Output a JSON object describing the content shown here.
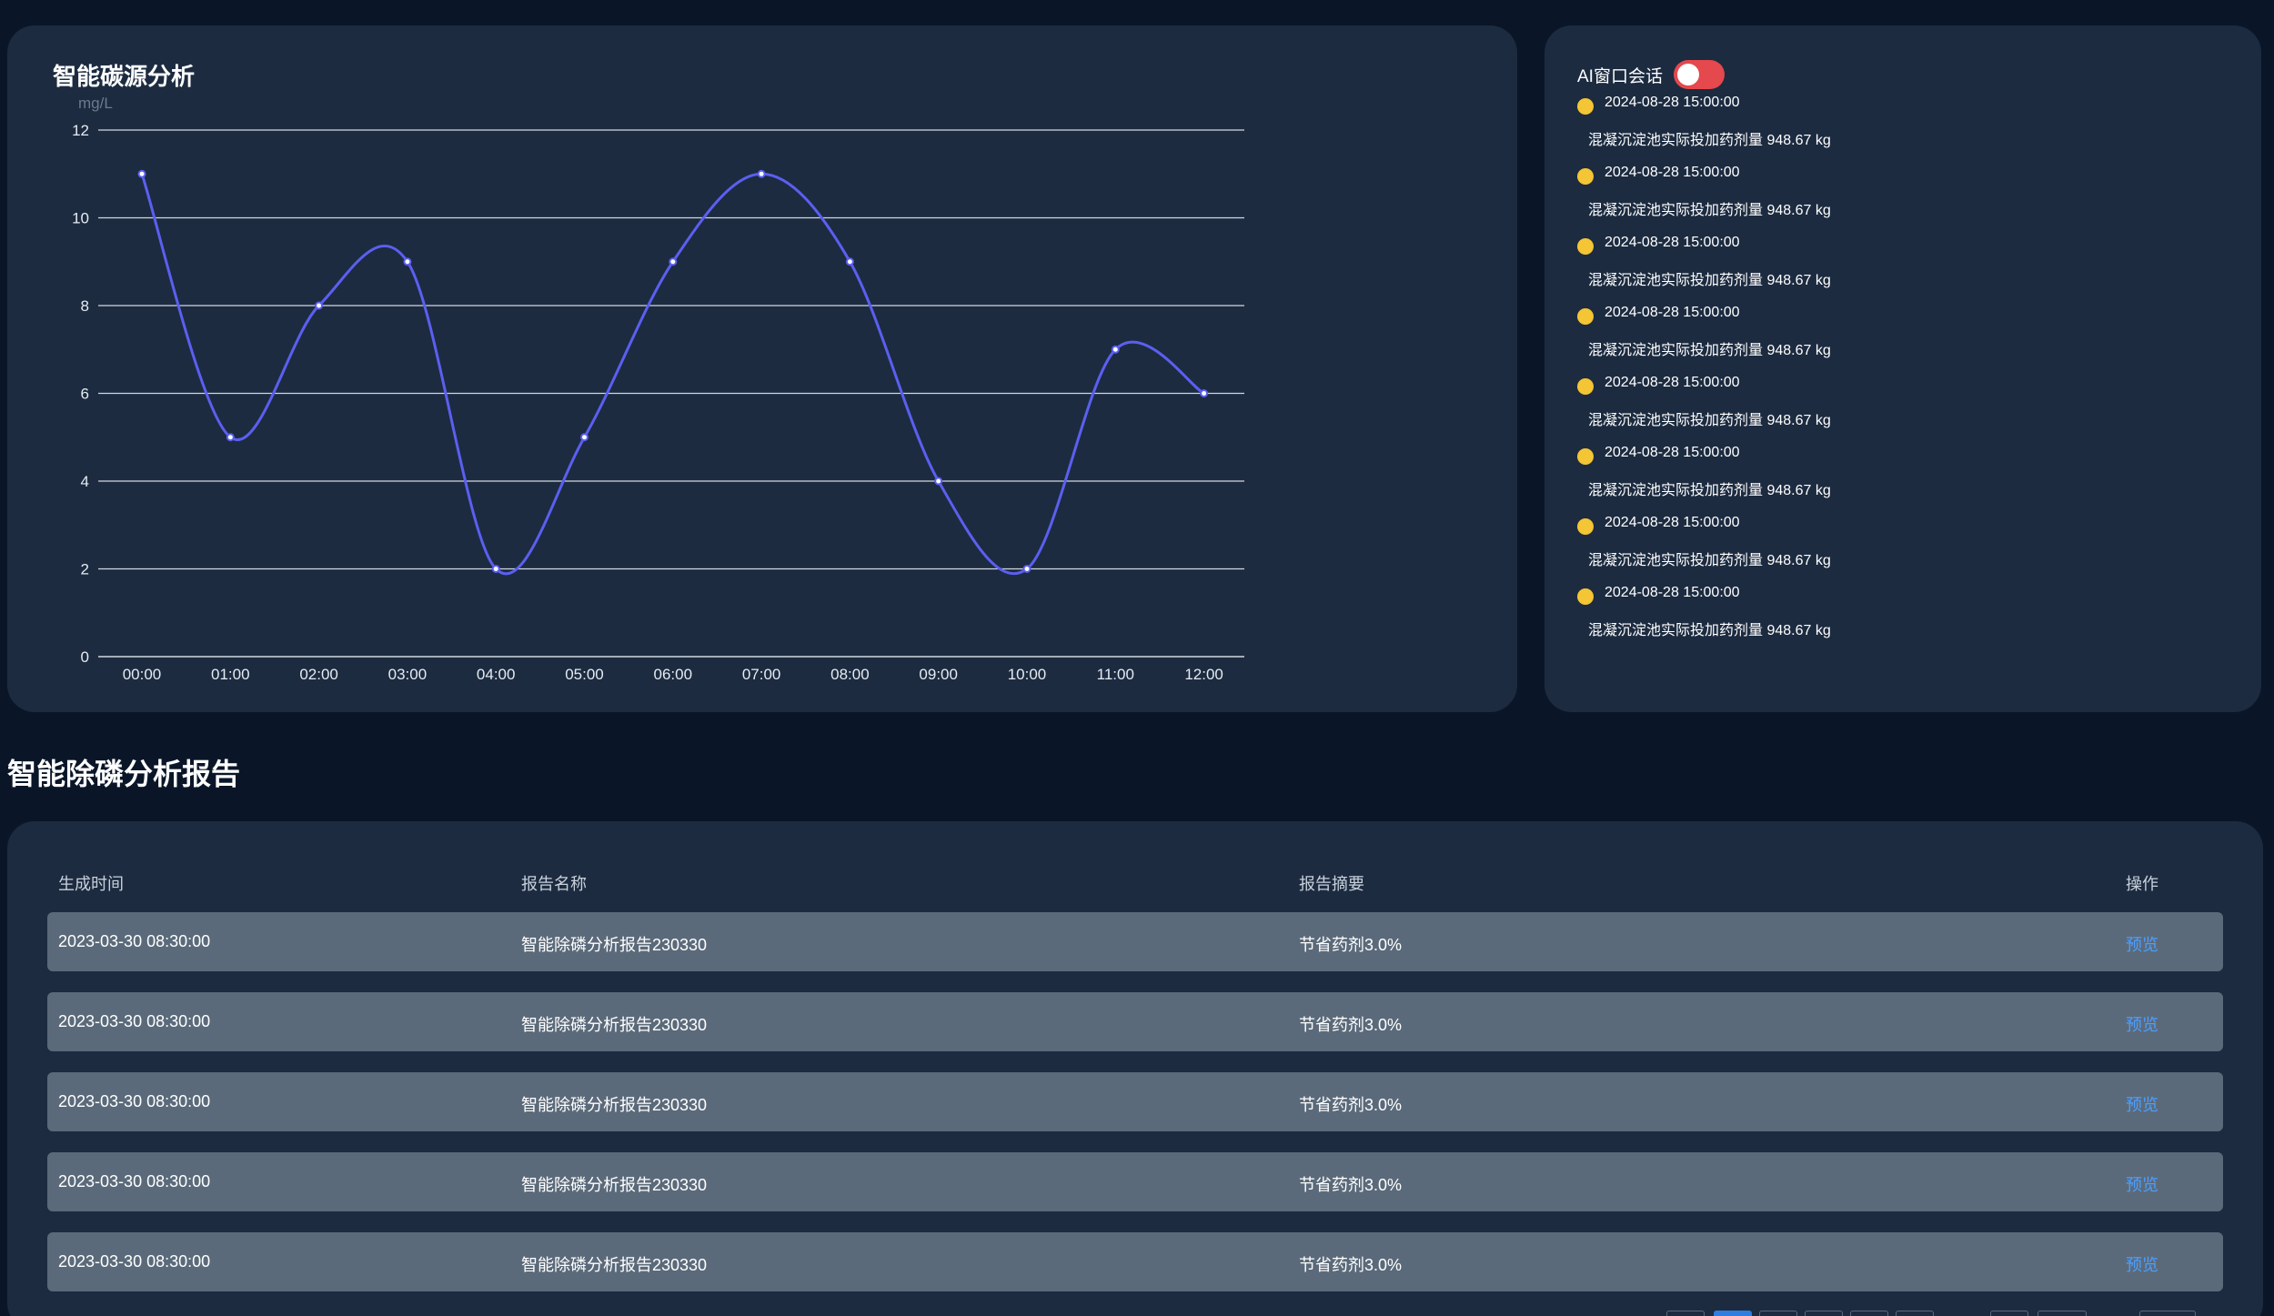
{
  "chart_panel": {
    "title": "智能碳源分析",
    "unit": "mg/L"
  },
  "chart_data": {
    "type": "line",
    "title": "智能碳源分析",
    "ylabel": "mg/L",
    "xlabel": "",
    "categories": [
      "00:00",
      "01:00",
      "02:00",
      "03:00",
      "04:00",
      "05:00",
      "06:00",
      "07:00",
      "08:00",
      "09:00",
      "10:00",
      "11:00",
      "12:00"
    ],
    "series": [
      {
        "values": [
          11,
          5,
          8,
          9,
          2,
          5,
          9,
          11,
          9,
          4,
          2,
          7,
          6
        ],
        "color": "#5b5ff0"
      }
    ],
    "ylim": [
      0,
      12
    ],
    "yticks": [
      0,
      2,
      4,
      6,
      8,
      10,
      12
    ],
    "grid": true,
    "smooth": true
  },
  "ai_panel": {
    "title": "AI窗口会话",
    "toggle_on": true,
    "items": [
      {
        "time": "2024-08-28 15:00:00",
        "text": "混凝沉淀池实际投加药剂量 948.67 kg"
      },
      {
        "time": "2024-08-28 15:00:00",
        "text": "混凝沉淀池实际投加药剂量 948.67 kg"
      },
      {
        "time": "2024-08-28 15:00:00",
        "text": "混凝沉淀池实际投加药剂量 948.67 kg"
      },
      {
        "time": "2024-08-28 15:00:00",
        "text": "混凝沉淀池实际投加药剂量 948.67 kg"
      },
      {
        "time": "2024-08-28 15:00:00",
        "text": "混凝沉淀池实际投加药剂量 948.67 kg"
      },
      {
        "time": "2024-08-28 15:00:00",
        "text": "混凝沉淀池实际投加药剂量 948.67 kg"
      },
      {
        "time": "2024-08-28 15:00:00",
        "text": "混凝沉淀池实际投加药剂量 948.67 kg"
      },
      {
        "time": "2024-08-28 15:00:00",
        "text": "混凝沉淀池实际投加药剂量 948.67 kg"
      }
    ],
    "colors": {
      "dot": "#f4c534",
      "toggle": "#e5484d"
    }
  },
  "report": {
    "title": "智能除磷分析报告",
    "columns": [
      "生成时间",
      "报告名称",
      "报告摘要",
      "操作"
    ],
    "rows": [
      {
        "time": "2023-03-30 08:30:00",
        "name": "智能除磷分析报告230330",
        "summary": "节省药剂3.0%",
        "action": "预览"
      },
      {
        "time": "2023-03-30 08:30:00",
        "name": "智能除磷分析报告230330",
        "summary": "节省药剂3.0%",
        "action": "预览"
      },
      {
        "time": "2023-03-30 08:30:00",
        "name": "智能除磷分析报告230330",
        "summary": "节省药剂3.0%",
        "action": "预览"
      },
      {
        "time": "2023-03-30 08:30:00",
        "name": "智能除磷分析报告230330",
        "summary": "节省药剂3.0%",
        "action": "预览"
      },
      {
        "time": "2023-03-30 08:30:00",
        "name": "智能除磷分析报告230330",
        "summary": "节省药剂3.0%",
        "action": "预览"
      }
    ]
  }
}
